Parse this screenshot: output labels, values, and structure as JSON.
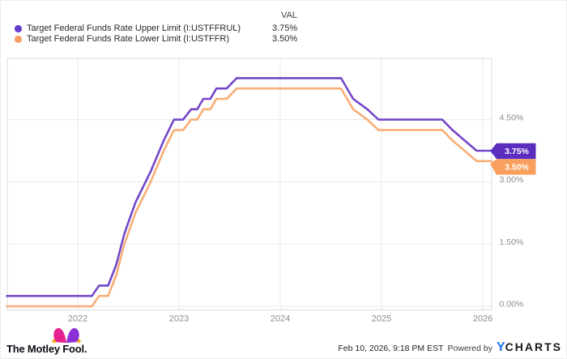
{
  "legend": {
    "val_header": "VAL",
    "items": [
      {
        "label": "Target Federal Funds Rate Upper Limit (I:USTFFRUL)",
        "value": "3.75%"
      },
      {
        "label": "Target Federal Funds Rate Lower Limit (I:USTFFR)",
        "value": "3.50%"
      }
    ]
  },
  "chart_data": {
    "type": "line",
    "title": "",
    "x_axis": {
      "tick_labels": [
        "2022",
        "2023",
        "2024",
        "2025",
        "2026"
      ],
      "tick_values": [
        2022,
        2023,
        2024,
        2025,
        2026
      ],
      "range": [
        2021.3,
        2026.09
      ]
    },
    "y_axis": {
      "side": "right",
      "unit": "%",
      "tick_labels": [
        "0.00%",
        "1.50%",
        "3.00%",
        "4.50%"
      ],
      "tick_values": [
        0,
        1.5,
        3,
        4.5
      ],
      "range": [
        -0.09,
        5.98
      ]
    },
    "grid": true,
    "legend_position": "top-left",
    "series": [
      {
        "name": "Target Federal Funds Rate Upper Limit",
        "ticker": "I:USTFFRUL",
        "color": "#7347c9",
        "badge_color": "#5b2ec0",
        "end_label": "3.75%",
        "points": [
          [
            2021.3,
            0.25
          ],
          [
            2022.14,
            0.25
          ],
          [
            2022.21,
            0.5
          ],
          [
            2022.3,
            0.5
          ],
          [
            2022.38,
            1.0
          ],
          [
            2022.46,
            1.75
          ],
          [
            2022.57,
            2.5
          ],
          [
            2022.72,
            3.25
          ],
          [
            2022.85,
            4.0
          ],
          [
            2022.95,
            4.5
          ],
          [
            2023.04,
            4.5
          ],
          [
            2023.12,
            4.75
          ],
          [
            2023.18,
            4.75
          ],
          [
            2023.24,
            5.0
          ],
          [
            2023.31,
            5.0
          ],
          [
            2023.37,
            5.25
          ],
          [
            2023.47,
            5.25
          ],
          [
            2023.57,
            5.5
          ],
          [
            2024.6,
            5.5
          ],
          [
            2024.72,
            5.0
          ],
          [
            2024.86,
            4.75
          ],
          [
            2024.97,
            4.5
          ],
          [
            2025.6,
            4.5
          ],
          [
            2025.7,
            4.25
          ],
          [
            2025.82,
            4.0
          ],
          [
            2025.94,
            3.75
          ],
          [
            2026.09,
            3.75
          ]
        ]
      },
      {
        "name": "Target Federal Funds Rate Lower Limit",
        "ticker": "I:USTFFR",
        "color": "#f8ae76",
        "badge_color": "#faa05e",
        "end_label": "3.50%",
        "points": [
          [
            2021.3,
            0.0
          ],
          [
            2022.14,
            0.0
          ],
          [
            2022.21,
            0.25
          ],
          [
            2022.3,
            0.25
          ],
          [
            2022.38,
            0.75
          ],
          [
            2022.46,
            1.5
          ],
          [
            2022.57,
            2.25
          ],
          [
            2022.72,
            3.0
          ],
          [
            2022.85,
            3.75
          ],
          [
            2022.95,
            4.25
          ],
          [
            2023.04,
            4.25
          ],
          [
            2023.12,
            4.5
          ],
          [
            2023.18,
            4.5
          ],
          [
            2023.24,
            4.75
          ],
          [
            2023.31,
            4.75
          ],
          [
            2023.37,
            5.0
          ],
          [
            2023.47,
            5.0
          ],
          [
            2023.57,
            5.25
          ],
          [
            2024.6,
            5.25
          ],
          [
            2024.72,
            4.75
          ],
          [
            2024.86,
            4.5
          ],
          [
            2024.97,
            4.25
          ],
          [
            2025.6,
            4.25
          ],
          [
            2025.7,
            4.0
          ],
          [
            2025.82,
            3.75
          ],
          [
            2025.94,
            3.5
          ],
          [
            2026.09,
            3.5
          ]
        ]
      }
    ]
  },
  "footer": {
    "brand": "The Motley Fool.",
    "timestamp": "Feb 10, 2026, 9:18 PM EST",
    "powered_by": "Powered by",
    "ycharts_y": "Y",
    "ycharts_charts": "CHARTS"
  },
  "colors": {
    "upper_line": "#7347c9",
    "lower_line": "#f8ae76",
    "upper_dot": "#693cd2",
    "lower_dot": "#f7a069",
    "upper_badge": "#5b2ec0",
    "lower_badge": "#faa05e",
    "ycharts_blue": "#1c74e9",
    "fool_magenta": "#e4218f",
    "fool_purple": "#8b2fd6",
    "fool_gold": "#f2b01e",
    "gridline": "#e9e9e9",
    "axis_text": "#8b8b8b"
  }
}
